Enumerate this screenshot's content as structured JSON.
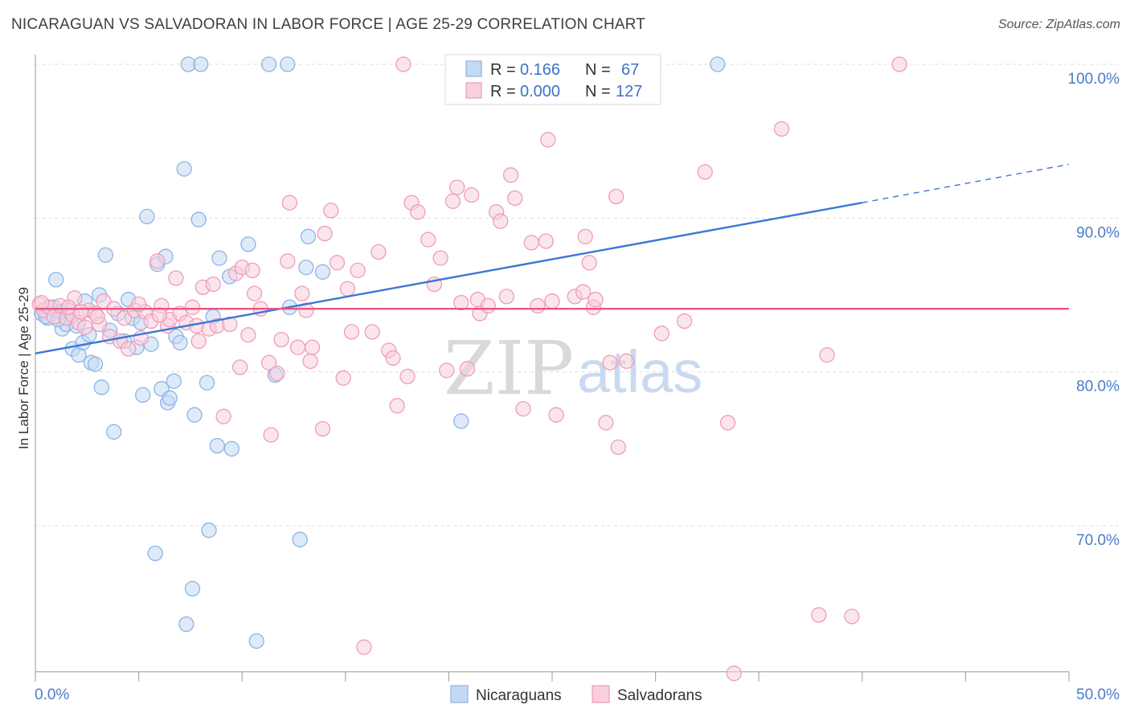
{
  "title": "NICARAGUAN VS SALVADORAN IN LABOR FORCE | AGE 25-29 CORRELATION CHART",
  "source": "Source: ZipAtlas.com",
  "watermark": {
    "zip": "ZIP",
    "atlas": "atlas"
  },
  "chart_data": {
    "type": "scatter",
    "ylabel": "In Labor Force | Age 25-29",
    "xlim": [
      0,
      50
    ],
    "ylim": [
      60.5,
      102
    ],
    "x_tick_labels": {
      "left": "0.0%",
      "right": "50.0%"
    },
    "y_ticks": [
      {
        "value": 100,
        "label": "100.0%"
      },
      {
        "value": 90,
        "label": "90.0%"
      },
      {
        "value": 80,
        "label": "80.0%"
      },
      {
        "value": 70,
        "label": "70.0%"
      }
    ],
    "legend": {
      "r_label": "R =",
      "n_label": "N =",
      "entries": [
        {
          "name": "Nicaraguans",
          "r": "0.166",
          "n": "67",
          "color": "#8ab4e8",
          "fill": "#c4d9f4"
        },
        {
          "name": "Salvadorans",
          "r": "0.000",
          "n": "127",
          "color": "#ee9cb8",
          "fill": "#f8cfdd"
        }
      ]
    },
    "series": [
      {
        "name": "Nicaraguans",
        "color": "#8ab4e8",
        "trend": {
          "x0": 0,
          "y0": 81.2,
          "x1": 40,
          "y1": 91.0,
          "x_dash_end": 50,
          "y_dash_end": 93.5,
          "color": "#3a78d4"
        },
        "points": [
          [
            0.3,
            83.8
          ],
          [
            0.6,
            83.5
          ],
          [
            0.9,
            84.2
          ],
          [
            1.0,
            86.0
          ],
          [
            1.2,
            83.9
          ],
          [
            1.3,
            82.8
          ],
          [
            1.5,
            83.1
          ],
          [
            1.6,
            84.0
          ],
          [
            1.8,
            81.5
          ],
          [
            2.0,
            83.0
          ],
          [
            2.1,
            81.1
          ],
          [
            2.3,
            81.9
          ],
          [
            2.4,
            84.6
          ],
          [
            2.6,
            82.4
          ],
          [
            2.7,
            80.6
          ],
          [
            2.9,
            80.5
          ],
          [
            3.1,
            85.0
          ],
          [
            3.2,
            79.0
          ],
          [
            3.4,
            87.6
          ],
          [
            3.6,
            82.7
          ],
          [
            3.8,
            76.1
          ],
          [
            4.0,
            83.8
          ],
          [
            4.3,
            82.0
          ],
          [
            4.5,
            84.7
          ],
          [
            4.7,
            83.5
          ],
          [
            4.9,
            81.6
          ],
          [
            5.1,
            83.2
          ],
          [
            5.2,
            78.5
          ],
          [
            5.4,
            90.1
          ],
          [
            5.6,
            81.8
          ],
          [
            5.8,
            68.2
          ],
          [
            5.9,
            87.0
          ],
          [
            6.1,
            78.9
          ],
          [
            6.3,
            87.5
          ],
          [
            6.4,
            78.0
          ],
          [
            6.5,
            78.3
          ],
          [
            6.7,
            79.4
          ],
          [
            6.8,
            82.3
          ],
          [
            7.0,
            81.9
          ],
          [
            7.2,
            93.2
          ],
          [
            7.3,
            63.6
          ],
          [
            7.4,
            100
          ],
          [
            7.6,
            65.9
          ],
          [
            7.7,
            77.2
          ],
          [
            7.9,
            89.9
          ],
          [
            8.0,
            100
          ],
          [
            8.3,
            79.3
          ],
          [
            8.4,
            69.7
          ],
          [
            8.6,
            83.6
          ],
          [
            8.8,
            75.2
          ],
          [
            8.9,
            87.4
          ],
          [
            9.4,
            86.2
          ],
          [
            9.5,
            75.0
          ],
          [
            10.3,
            88.3
          ],
          [
            10.7,
            62.5
          ],
          [
            11.3,
            100
          ],
          [
            11.6,
            79.8
          ],
          [
            12.2,
            100
          ],
          [
            12.3,
            84.2
          ],
          [
            12.8,
            69.1
          ],
          [
            13.1,
            86.8
          ],
          [
            13.2,
            88.8
          ],
          [
            13.9,
            86.5
          ],
          [
            20.6,
            76.8
          ],
          [
            33.0,
            100
          ],
          [
            0.5,
            83.6
          ],
          [
            1.1,
            83.4
          ]
        ]
      },
      {
        "name": "Salvadorans",
        "color": "#ee9cb8",
        "trend": {
          "x0": 0,
          "y0": 84.1,
          "x1": 50,
          "y1": 84.1,
          "color": "#e9577f"
        },
        "points": [
          [
            0.2,
            84.4
          ],
          [
            0.4,
            84.0
          ],
          [
            0.7,
            84.2
          ],
          [
            0.9,
            83.6
          ],
          [
            1.2,
            84.3
          ],
          [
            1.5,
            83.5
          ],
          [
            1.8,
            83.7
          ],
          [
            1.9,
            84.8
          ],
          [
            2.1,
            83.2
          ],
          [
            2.4,
            82.9
          ],
          [
            2.6,
            84.0
          ],
          [
            2.9,
            83.8
          ],
          [
            3.1,
            83.1
          ],
          [
            3.3,
            84.6
          ],
          [
            3.6,
            82.3
          ],
          [
            3.8,
            84.1
          ],
          [
            4.1,
            82.0
          ],
          [
            4.3,
            83.5
          ],
          [
            4.5,
            81.5
          ],
          [
            4.8,
            84.0
          ],
          [
            5.1,
            82.2
          ],
          [
            5.3,
            83.9
          ],
          [
            5.6,
            83.3
          ],
          [
            5.9,
            87.2
          ],
          [
            6.1,
            84.3
          ],
          [
            6.4,
            83.0
          ],
          [
            6.5,
            83.4
          ],
          [
            6.8,
            86.1
          ],
          [
            7.0,
            83.8
          ],
          [
            7.3,
            83.2
          ],
          [
            7.6,
            84.2
          ],
          [
            7.8,
            83.0
          ],
          [
            7.9,
            82.0
          ],
          [
            8.1,
            85.5
          ],
          [
            8.4,
            82.8
          ],
          [
            8.6,
            85.7
          ],
          [
            8.8,
            83.0
          ],
          [
            9.1,
            77.1
          ],
          [
            9.4,
            83.1
          ],
          [
            9.7,
            86.4
          ],
          [
            9.9,
            80.3
          ],
          [
            10.0,
            86.8
          ],
          [
            10.3,
            82.4
          ],
          [
            10.5,
            86.6
          ],
          [
            10.6,
            85.1
          ],
          [
            10.9,
            84.1
          ],
          [
            11.3,
            80.6
          ],
          [
            11.4,
            75.9
          ],
          [
            11.7,
            79.9
          ],
          [
            11.9,
            82.1
          ],
          [
            12.2,
            87.2
          ],
          [
            12.3,
            91.0
          ],
          [
            12.7,
            81.6
          ],
          [
            12.9,
            85.1
          ],
          [
            13.1,
            84.0
          ],
          [
            13.3,
            80.7
          ],
          [
            13.4,
            81.6
          ],
          [
            13.9,
            76.3
          ],
          [
            14.0,
            89.0
          ],
          [
            14.3,
            90.5
          ],
          [
            14.6,
            87.1
          ],
          [
            14.9,
            79.6
          ],
          [
            15.1,
            85.4
          ],
          [
            15.3,
            82.6
          ],
          [
            15.6,
            86.6
          ],
          [
            15.9,
            62.1
          ],
          [
            16.3,
            82.6
          ],
          [
            16.6,
            87.8
          ],
          [
            17.1,
            81.4
          ],
          [
            17.3,
            80.9
          ],
          [
            17.5,
            77.8
          ],
          [
            17.8,
            100
          ],
          [
            18.0,
            79.7
          ],
          [
            18.2,
            91.0
          ],
          [
            18.5,
            90.4
          ],
          [
            19.0,
            88.6
          ],
          [
            19.3,
            85.7
          ],
          [
            19.6,
            87.4
          ],
          [
            19.9,
            80.1
          ],
          [
            20.2,
            91.1
          ],
          [
            20.4,
            92.0
          ],
          [
            20.6,
            84.5
          ],
          [
            20.9,
            80.2
          ],
          [
            21.1,
            91.5
          ],
          [
            21.4,
            84.7
          ],
          [
            21.5,
            83.8
          ],
          [
            21.9,
            84.3
          ],
          [
            22.0,
            100
          ],
          [
            22.3,
            90.4
          ],
          [
            22.5,
            89.8
          ],
          [
            22.8,
            84.9
          ],
          [
            23.0,
            92.8
          ],
          [
            23.2,
            91.3
          ],
          [
            23.6,
            77.6
          ],
          [
            24.0,
            88.4
          ],
          [
            24.3,
            84.3
          ],
          [
            24.7,
            88.5
          ],
          [
            24.8,
            95.1
          ],
          [
            25.0,
            84.6
          ],
          [
            25.2,
            77.2
          ],
          [
            26.1,
            84.9
          ],
          [
            26.5,
            85.2
          ],
          [
            26.6,
            88.8
          ],
          [
            26.8,
            87.1
          ],
          [
            27.0,
            84.2
          ],
          [
            27.1,
            84.7
          ],
          [
            27.6,
            76.7
          ],
          [
            27.8,
            80.6
          ],
          [
            28.1,
            91.4
          ],
          [
            28.2,
            75.1
          ],
          [
            28.6,
            80.7
          ],
          [
            30.3,
            82.5
          ],
          [
            31.4,
            83.3
          ],
          [
            32.4,
            93.0
          ],
          [
            33.5,
            76.7
          ],
          [
            33.8,
            60.4
          ],
          [
            36.1,
            95.8
          ],
          [
            37.9,
            64.2
          ],
          [
            38.3,
            81.1
          ],
          [
            39.5,
            64.1
          ],
          [
            41.8,
            100
          ],
          [
            0.3,
            84.5
          ],
          [
            1.6,
            84.2
          ],
          [
            2.2,
            83.9
          ],
          [
            5.0,
            84.4
          ],
          [
            3.0,
            83.6
          ],
          [
            6.0,
            83.7
          ]
        ]
      }
    ]
  }
}
